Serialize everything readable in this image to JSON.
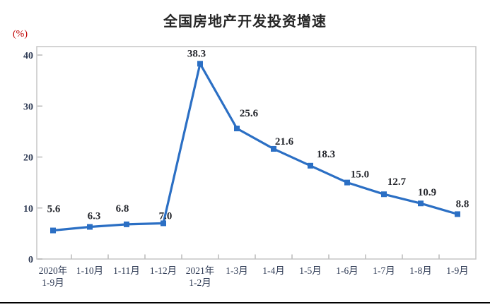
{
  "chart_title": "全国房地产开发投资增速",
  "y_axis_unit": "(%)",
  "colors": {
    "line": "#2b6fc4",
    "marker": "#2b6fc4",
    "plot_border": "#c6c6c6",
    "tick": "#a8a8a8",
    "axis_text": "#2f3b55",
    "data_label": "#26282e",
    "unit_label": "#c00000",
    "title_text": "#262626",
    "footer_rule": "#000000"
  },
  "chart_data": {
    "type": "line",
    "title": "全国房地产开发投资增速",
    "ylabel": "(%)",
    "xlabel": "",
    "categories": [
      "2020年\n1-9月",
      "1-10月",
      "1-11月",
      "1-12月",
      "2021年\n1-2月",
      "1-3月",
      "1-4月",
      "1-5月",
      "1-6月",
      "1-7月",
      "1-8月",
      "1-9月"
    ],
    "values": [
      5.6,
      6.3,
      6.8,
      7.0,
      38.3,
      25.6,
      21.6,
      18.3,
      15.0,
      12.7,
      10.9,
      8.8
    ],
    "ylim": [
      0,
      40
    ],
    "yticks": [
      0,
      10,
      20,
      30,
      40
    ],
    "grid": false,
    "legend": "none",
    "marker": "square",
    "data_labels_visible": true
  }
}
